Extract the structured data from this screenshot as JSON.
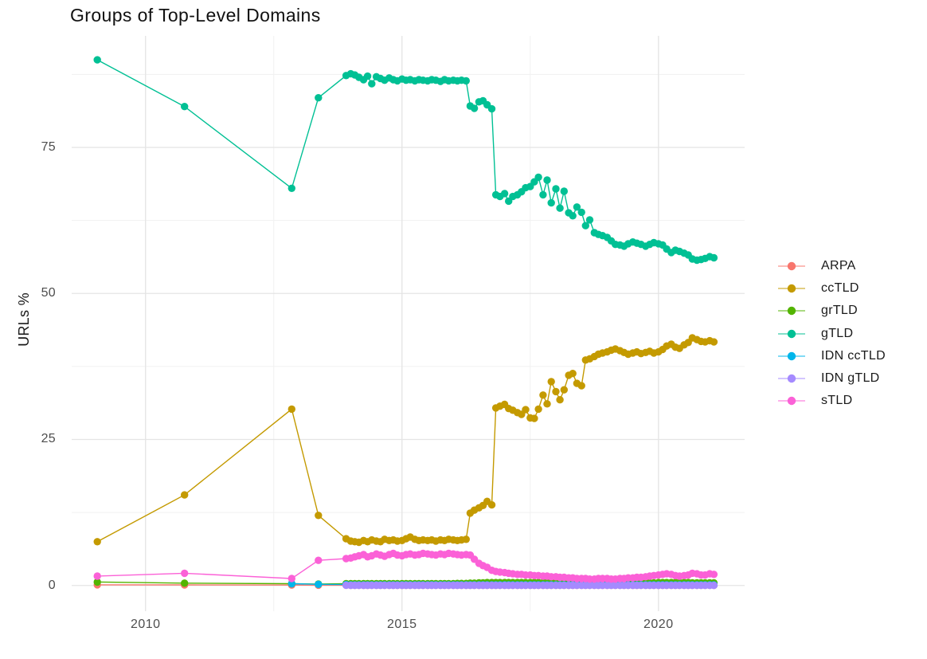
{
  "title": "Groups of Top-Level Domains",
  "ylabel": "URLs %",
  "axes": {
    "x_ticks": [
      {
        "label": "2010",
        "value": 2010
      },
      {
        "label": "2015",
        "value": 2015
      },
      {
        "label": "2020",
        "value": 2020
      }
    ],
    "y_ticks": [
      {
        "label": "0",
        "value": 0
      },
      {
        "label": "25",
        "value": 25
      },
      {
        "label": "50",
        "value": 50
      },
      {
        "label": "75",
        "value": 75
      }
    ]
  },
  "colors": {
    "grid_major": "#e4e4e4",
    "grid_minor": "#f1f1f1",
    "tick_text": "#4d4d4d",
    "title_text": "#111111"
  },
  "chart_data": {
    "type": "line",
    "title": "Groups of Top-Level Domains",
    "xlabel": "",
    "ylabel": "URLs %",
    "legend_position": "right",
    "grid": true,
    "xlim": [
      2008.56,
      2021.68
    ],
    "ylim": [
      -4.4,
      94.1
    ],
    "x_major": [
      2010,
      2015,
      2020
    ],
    "x_minor": [
      2012.5,
      2017.5
    ],
    "y_major": [
      0,
      25,
      50,
      75
    ],
    "y_minor": [
      12.5,
      37.5,
      62.5,
      87.5
    ],
    "x": [
      2009.06,
      2010.76,
      2012.85,
      2013.37,
      2013.91,
      2014.0,
      2014.08,
      2014.16,
      2014.25,
      2014.33,
      2014.41,
      2014.5,
      2014.58,
      2014.66,
      2014.75,
      2014.83,
      2014.91,
      2015.0,
      2015.08,
      2015.16,
      2015.25,
      2015.33,
      2015.41,
      2015.5,
      2015.58,
      2015.66,
      2015.75,
      2015.83,
      2015.91,
      2016.0,
      2016.08,
      2016.16,
      2016.25,
      2016.33,
      2016.41,
      2016.5,
      2016.58,
      2016.66,
      2016.75,
      2016.83,
      2016.91,
      2017.0,
      2017.08,
      2017.16,
      2017.25,
      2017.33,
      2017.41,
      2017.5,
      2017.58,
      2017.66,
      2017.75,
      2017.83,
      2017.91,
      2018.0,
      2018.08,
      2018.16,
      2018.25,
      2018.33,
      2018.41,
      2018.5,
      2018.58,
      2018.66,
      2018.75,
      2018.83,
      2018.91,
      2019.0,
      2019.08,
      2019.16,
      2019.25,
      2019.33,
      2019.41,
      2019.5,
      2019.58,
      2019.66,
      2019.75,
      2019.83,
      2019.91,
      2020.0,
      2020.08,
      2020.16,
      2020.25,
      2020.33,
      2020.41,
      2020.5,
      2020.58,
      2020.66,
      2020.75,
      2020.83,
      2020.91,
      2021.0,
      2021.08
    ],
    "series": [
      {
        "name": "ARPA",
        "color": "#F8766D",
        "values": [
          0.12,
          0.1,
          0.08,
          0.05,
          0.05,
          0.04,
          0.04,
          0.04,
          0.04,
          0.04,
          0.04,
          0.04,
          0.04,
          0.04,
          0.04,
          0.04,
          0.04,
          0.04,
          0.04,
          0.04,
          0.04,
          0.04,
          0.04,
          0.04,
          0.04,
          0.04,
          0.04,
          0.04,
          0.04,
          0.04,
          0.04,
          0.04,
          0.04,
          0.03,
          0.03,
          0.03,
          0.03,
          0.03,
          0.03,
          0.03,
          0.03,
          0.03,
          0.03,
          0.03,
          0.03,
          0.03,
          0.03,
          0.03,
          0.03,
          0.03,
          0.03,
          0.03,
          0.03,
          0.03,
          0.03,
          0.03,
          0.03,
          0.03,
          0.03,
          0.03,
          0.03,
          0.03,
          0.03,
          0.03,
          0.03,
          0.03,
          0.03,
          0.03,
          0.03,
          0.03,
          0.03,
          0.03,
          0.03,
          0.03,
          0.03,
          0.03,
          0.03,
          0.03,
          0.03,
          0.03,
          0.03,
          0.03,
          0.03,
          0.03,
          0.03,
          0.03,
          0.03,
          0.03,
          0.03,
          0.03,
          0.03
        ]
      },
      {
        "name": "ccTLD",
        "color": "#C49A00",
        "values": [
          7.5,
          15.5,
          30.2,
          12.0,
          8.0,
          7.6,
          7.5,
          7.4,
          7.7,
          7.5,
          7.8,
          7.6,
          7.5,
          7.9,
          7.7,
          7.8,
          7.6,
          7.7,
          8.0,
          8.3,
          7.9,
          7.7,
          7.8,
          7.7,
          7.8,
          7.6,
          7.8,
          7.7,
          7.9,
          7.8,
          7.7,
          7.8,
          7.9,
          12.4,
          12.9,
          13.3,
          13.7,
          14.4,
          13.8,
          30.4,
          30.7,
          31.0,
          30.3,
          30.0,
          29.6,
          29.3,
          30.1,
          28.7,
          28.6,
          30.2,
          32.6,
          31.1,
          34.9,
          33.2,
          31.8,
          33.5,
          36.0,
          36.3,
          34.6,
          34.2,
          38.6,
          38.8,
          39.2,
          39.6,
          39.8,
          40.0,
          40.3,
          40.5,
          40.2,
          39.9,
          39.6,
          39.8,
          40.0,
          39.7,
          39.9,
          40.1,
          39.8,
          40.0,
          40.4,
          41.0,
          41.3,
          40.8,
          40.6,
          41.2,
          41.6,
          42.4,
          42.1,
          41.8,
          41.7,
          41.9,
          41.7
        ]
      },
      {
        "name": "grTLD",
        "color": "#53B400",
        "values": [
          0.6,
          0.4,
          0.3,
          0.25,
          0.3,
          0.3,
          0.3,
          0.3,
          0.3,
          0.3,
          0.3,
          0.3,
          0.3,
          0.3,
          0.3,
          0.3,
          0.3,
          0.3,
          0.3,
          0.3,
          0.3,
          0.3,
          0.3,
          0.3,
          0.3,
          0.3,
          0.3,
          0.3,
          0.3,
          0.3,
          0.35,
          0.35,
          0.35,
          0.4,
          0.4,
          0.45,
          0.45,
          0.5,
          0.5,
          0.5,
          0.5,
          0.5,
          0.5,
          0.5,
          0.5,
          0.5,
          0.5,
          0.5,
          0.5,
          0.5,
          0.5,
          0.5,
          0.5,
          0.5,
          0.5,
          0.45,
          0.45,
          0.45,
          0.45,
          0.45,
          0.45,
          0.45,
          0.45,
          0.45,
          0.45,
          0.45,
          0.45,
          0.45,
          0.45,
          0.45,
          0.45,
          0.45,
          0.45,
          0.45,
          0.45,
          0.45,
          0.45,
          0.5,
          0.5,
          0.5,
          0.5,
          0.5,
          0.5,
          0.5,
          0.5,
          0.45,
          0.45,
          0.45,
          0.45,
          0.45,
          0.45
        ]
      },
      {
        "name": "gTLD",
        "color": "#00C094",
        "values": [
          90.0,
          82.0,
          68.0,
          83.5,
          87.3,
          87.6,
          87.4,
          87.0,
          86.6,
          87.2,
          85.9,
          87.1,
          86.8,
          86.5,
          86.9,
          86.6,
          86.4,
          86.7,
          86.5,
          86.6,
          86.4,
          86.6,
          86.5,
          86.4,
          86.6,
          86.5,
          86.3,
          86.6,
          86.4,
          86.5,
          86.4,
          86.5,
          86.4,
          82.1,
          81.7,
          82.8,
          83.0,
          82.3,
          81.6,
          66.9,
          66.6,
          67.1,
          65.8,
          66.6,
          66.9,
          67.4,
          68.1,
          68.3,
          69.1,
          69.9,
          66.9,
          69.4,
          65.5,
          67.9,
          64.6,
          67.5,
          63.8,
          63.3,
          64.8,
          63.9,
          61.6,
          62.6,
          60.4,
          60.1,
          59.9,
          59.6,
          59.0,
          58.4,
          58.3,
          58.1,
          58.5,
          58.8,
          58.6,
          58.4,
          58.1,
          58.4,
          58.7,
          58.5,
          58.3,
          57.6,
          57.0,
          57.4,
          57.2,
          56.9,
          56.6,
          55.9,
          55.7,
          55.8,
          56.0,
          56.3,
          56.1
        ]
      },
      {
        "name": "IDN ccTLD",
        "color": "#00B6EB",
        "values": [
          null,
          null,
          0.3,
          0.2,
          0.15,
          0.12,
          0.12,
          0.12,
          0.12,
          0.12,
          0.12,
          0.12,
          0.12,
          0.12,
          0.12,
          0.12,
          0.12,
          0.12,
          0.12,
          0.12,
          0.12,
          0.12,
          0.12,
          0.12,
          0.12,
          0.12,
          0.12,
          0.12,
          0.12,
          0.1,
          0.1,
          0.1,
          0.1,
          0.1,
          0.1,
          0.1,
          0.1,
          0.1,
          0.1,
          0.1,
          0.1,
          0.1,
          0.1,
          0.1,
          0.1,
          0.1,
          0.1,
          0.1,
          0.1,
          0.1,
          0.1,
          0.1,
          0.1,
          0.1,
          0.1,
          0.1,
          0.1,
          0.1,
          0.1,
          0.1,
          0.1,
          0.1,
          0.1,
          0.1,
          0.1,
          0.1,
          0.1,
          0.1,
          0.1,
          0.1,
          0.1,
          0.1,
          0.1,
          0.1,
          0.1,
          0.1,
          0.1,
          0.1,
          0.1,
          0.1,
          0.1,
          0.1,
          0.1,
          0.1,
          0.1,
          0.1,
          0.1,
          0.1,
          0.1,
          0.1,
          0.1
        ]
      },
      {
        "name": "IDN gTLD",
        "color": "#A58AFF",
        "values": [
          null,
          null,
          null,
          null,
          0.05,
          0.04,
          0.04,
          0.04,
          0.04,
          0.04,
          0.04,
          0.04,
          0.04,
          0.04,
          0.04,
          0.04,
          0.04,
          0.04,
          0.04,
          0.04,
          0.04,
          0.04,
          0.04,
          0.04,
          0.04,
          0.04,
          0.04,
          0.04,
          0.04,
          0.04,
          0.04,
          0.04,
          0.04,
          0.03,
          0.03,
          0.03,
          0.03,
          0.03,
          0.03,
          0.02,
          0.02,
          0.02,
          0.02,
          0.02,
          0.02,
          0.02,
          0.02,
          0.02,
          0.02,
          0.02,
          0.02,
          0.02,
          0.02,
          0.02,
          0.02,
          0.02,
          0.02,
          0.02,
          0.02,
          0.02,
          0.02,
          0.02,
          0.02,
          0.02,
          0.02,
          0.02,
          0.02,
          0.02,
          0.02,
          0.02,
          0.02,
          0.02,
          0.02,
          0.02,
          0.02,
          0.02,
          0.02,
          0.02,
          0.02,
          0.02,
          0.02,
          0.02,
          0.02,
          0.02,
          0.02,
          0.02,
          0.02,
          0.02,
          0.02,
          0.02,
          0.02
        ]
      },
      {
        "name": "sTLD",
        "color": "#FB61D7",
        "values": [
          1.6,
          2.1,
          1.2,
          4.3,
          4.6,
          4.7,
          4.9,
          5.1,
          5.3,
          4.9,
          5.1,
          5.4,
          5.2,
          5.0,
          5.3,
          5.5,
          5.2,
          5.1,
          5.3,
          5.4,
          5.2,
          5.3,
          5.5,
          5.4,
          5.3,
          5.2,
          5.4,
          5.3,
          5.5,
          5.4,
          5.3,
          5.2,
          5.3,
          5.2,
          4.5,
          3.8,
          3.4,
          3.1,
          2.6,
          2.4,
          2.3,
          2.2,
          2.1,
          2.0,
          1.9,
          1.9,
          1.8,
          1.8,
          1.7,
          1.7,
          1.6,
          1.6,
          1.5,
          1.5,
          1.4,
          1.4,
          1.3,
          1.3,
          1.2,
          1.2,
          1.2,
          1.1,
          1.1,
          1.2,
          1.2,
          1.2,
          1.1,
          1.1,
          1.2,
          1.2,
          1.3,
          1.3,
          1.4,
          1.4,
          1.5,
          1.6,
          1.7,
          1.8,
          1.9,
          2.0,
          1.9,
          1.7,
          1.6,
          1.7,
          1.8,
          2.1,
          2.0,
          1.8,
          1.8,
          2.0,
          1.9
        ]
      }
    ]
  }
}
